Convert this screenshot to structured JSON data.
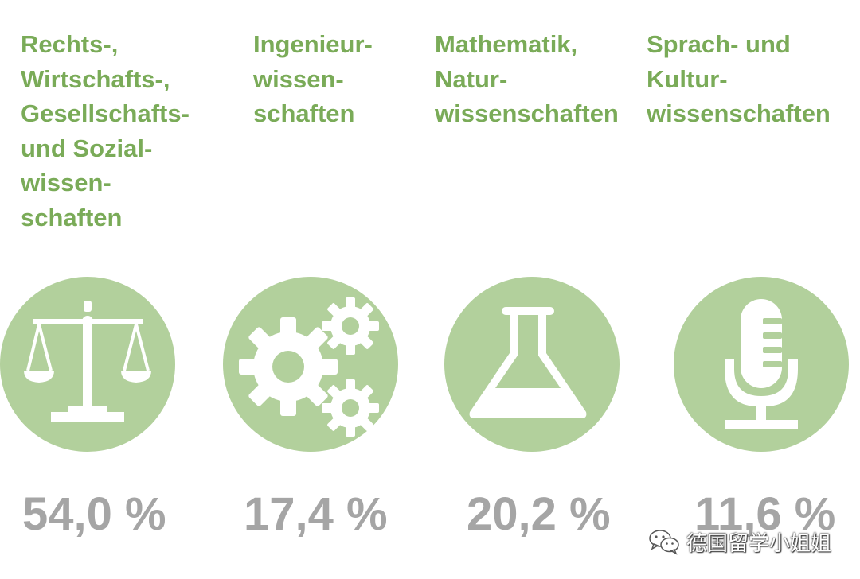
{
  "theme": {
    "accent_green": "#7aab58",
    "circle_green": "#b2d09c",
    "percent_gray": "#a5a5a5",
    "icon_color": "#ffffff"
  },
  "categories": [
    {
      "heading_lines": [
        "Rechts-,",
        "Wirtschafts-,",
        "Gesellschafts-",
        "und Sozial-",
        "wissen-",
        "schaften"
      ],
      "icon": "scales-of-justice-icon",
      "percent": "54,0 %"
    },
    {
      "heading_lines": [
        "Ingenieur-",
        "wissen-",
        "schaften"
      ],
      "icon": "gears-icon",
      "percent": "17,4 %"
    },
    {
      "heading_lines": [
        "Mathematik,",
        "Natur-",
        "wissenschaften"
      ],
      "icon": "flask-icon",
      "percent": "20,2 %"
    },
    {
      "heading_lines": [
        "Sprach- und",
        "Kultur-",
        "wissenschaften"
      ],
      "icon": "microphone-icon",
      "percent": "11,6 %"
    }
  ],
  "watermark": {
    "icon": "wechat-icon",
    "text": "德国留学小姐姐"
  }
}
